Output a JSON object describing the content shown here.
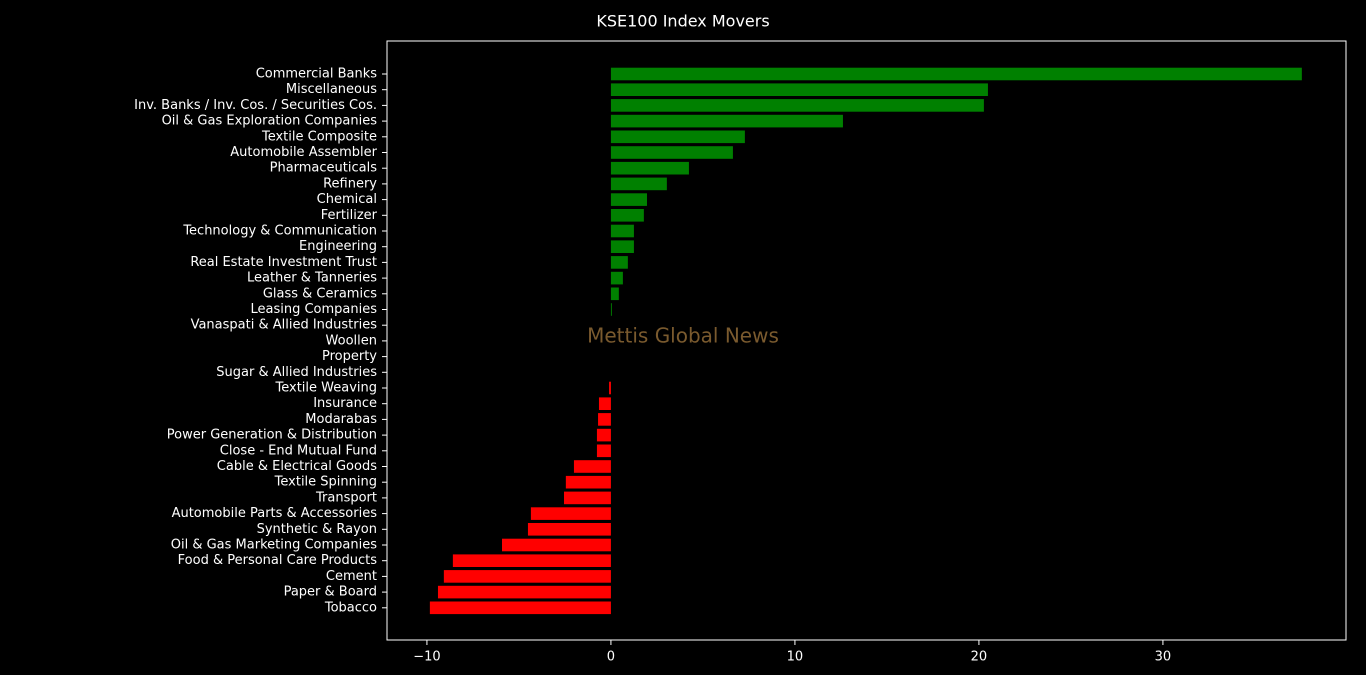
{
  "chart_data": {
    "type": "barh",
    "title": "KSE100 Index Movers",
    "watermark": "Mettis Global News",
    "categories": [
      "Commercial Banks",
      "Miscellaneous",
      "Inv. Banks / Inv. Cos. / Securities Cos.",
      "Oil & Gas Exploration Companies",
      "Textile Composite",
      "Automobile Assembler",
      "Pharmaceuticals",
      "Refinery",
      "Chemical",
      "Fertilizer",
      "Technology & Communication",
      "Engineering",
      "Real Estate Investment Trust",
      "Leather & Tanneries",
      "Glass & Ceramics",
      "Leasing Companies",
      "Vanaspati & Allied Industries",
      "Woollen",
      "Property",
      "Sugar & Allied Industries",
      "Textile Weaving",
      "Insurance",
      "Modarabas",
      "Power Generation & Distribution",
      "Close - End Mutual Fund",
      "Cable & Electrical Goods",
      "Textile Spinning",
      "Transport",
      "Automobile Parts & Accessories",
      "Synthetic & Rayon",
      "Oil & Gas Marketing Companies",
      "Food & Personal Care Products",
      "Cement",
      "Paper & Board",
      "Tobacco"
    ],
    "values": [
      37.55,
      20.49,
      20.27,
      12.61,
      7.28,
      6.63,
      4.24,
      3.04,
      1.96,
      1.79,
      1.25,
      1.25,
      0.92,
      0.65,
      0.43,
      0.05,
      0,
      0,
      0,
      0,
      -0.1,
      -0.65,
      -0.7,
      -0.76,
      -0.76,
      -2.01,
      -2.45,
      -2.55,
      -4.35,
      -4.51,
      -5.92,
      -8.59,
      -9.08,
      -9.4,
      -9.84
    ],
    "positive_color": "#008000",
    "negative_color": "#ff0000",
    "xlim": [
      -12.17,
      39.95
    ],
    "xticks": [
      {
        "value": -10,
        "label": "−10"
      },
      0,
      10,
      20,
      30
    ]
  }
}
